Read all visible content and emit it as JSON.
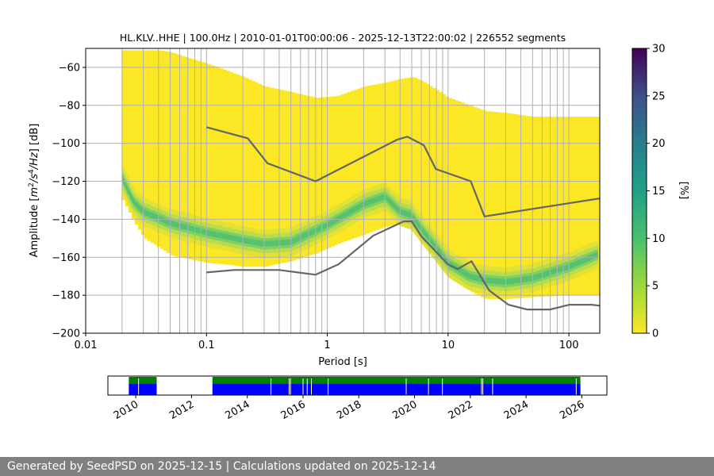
{
  "chart_data": [
    {
      "type": "heatmap",
      "title": "HL.KLV..HHE | 100.0Hz | 2010-01-01T00:00:06 - 2025-12-13T22:00:02 | 226552 segments",
      "xlabel": "Period [s]",
      "ylabel_parts": [
        "Amplitude [",
        "m",
        "2",
        "/",
        "s",
        "4",
        "/",
        "Hz",
        "] [dB]"
      ],
      "xscale": "log",
      "xlim": [
        0.01,
        180
      ],
      "ylim": [
        -200,
        -50
      ],
      "x_ticks": [
        0.01,
        0.1,
        1,
        10,
        100
      ],
      "x_tick_labels": [
        "0.01",
        "0.1",
        "1",
        "10",
        "100"
      ],
      "y_ticks": [
        -200,
        -180,
        -160,
        -140,
        -120,
        -100,
        -80,
        -60
      ],
      "y_tick_labels": [
        "−200",
        "−180",
        "−160",
        "−140",
        "−120",
        "−100",
        "−80",
        "−60"
      ],
      "grid": true,
      "colorbar": {
        "label": "[%]",
        "range": [
          0,
          30
        ],
        "ticks": [
          0,
          5,
          10,
          15,
          20,
          25,
          30
        ],
        "tick_labels": [
          "0",
          "5",
          "10",
          "15",
          "20",
          "25",
          "30"
        ],
        "colormap": "viridis_r"
      },
      "psd_envelope": {
        "period": [
          0.02,
          0.025,
          0.03,
          0.04,
          0.05,
          0.07,
          0.1,
          0.15,
          0.2,
          0.3,
          0.5,
          0.8,
          1.2,
          2,
          3,
          4,
          5,
          6,
          8,
          10,
          15,
          20,
          30,
          50,
          100,
          180
        ],
        "upper": [
          -51,
          -51,
          -51,
          -51,
          -52,
          -55,
          -58,
          -62,
          -65,
          -70,
          -73,
          -76,
          -75,
          -70,
          -68,
          -66,
          -65,
          -67,
          -72,
          -76,
          -80,
          -83,
          -84,
          -86,
          -86,
          -86
        ],
        "lower": [
          -130,
          -142,
          -150,
          -155,
          -159,
          -161,
          -163,
          -164,
          -165,
          -165,
          -162,
          -158,
          -153,
          -148,
          -144,
          -142,
          -142,
          -146,
          -156,
          -168,
          -178,
          -182,
          -182,
          -181,
          -180,
          -180
        ]
      },
      "mode": {
        "period": [
          0.02,
          0.025,
          0.03,
          0.05,
          0.1,
          0.2,
          0.3,
          0.5,
          1,
          2,
          3,
          4,
          5,
          6,
          8,
          10,
          15,
          20,
          30,
          50,
          100,
          180
        ],
        "values": [
          -118,
          -131,
          -136,
          -142,
          -147,
          -151,
          -153,
          -152,
          -143,
          -132,
          -128,
          -136,
          -138,
          -145,
          -155,
          -163,
          -170,
          -172,
          -173,
          -171,
          -165,
          -158
        ]
      },
      "nhnm": {
        "period": [
          0.1,
          0.22,
          0.32,
          0.8,
          3.8,
          4.6,
          6.3,
          7.9,
          15.4,
          20,
          180
        ],
        "values": [
          -91.5,
          -97.4,
          -110.5,
          -120,
          -98,
          -96.5,
          -101,
          -113.5,
          -120,
          -138.5,
          -129
        ]
      },
      "nlnm": {
        "period": [
          0.1,
          0.17,
          0.4,
          0.8,
          1.24,
          2.4,
          4.3,
          5,
          6,
          10,
          12,
          15.6,
          21.9,
          31.6,
          45,
          70,
          101,
          154,
          180
        ],
        "values": [
          -168,
          -166.7,
          -166.7,
          -169.2,
          -163.7,
          -148.6,
          -141.1,
          -141.1,
          -149,
          -163.8,
          -166.2,
          -162.1,
          -177.5,
          -185,
          -187.5,
          -187.5,
          -185,
          -185,
          -185.5
        ]
      },
      "vertical_gridlines_period": [
        0.02,
        0.03,
        0.04,
        0.05,
        0.06,
        0.07,
        0.08,
        0.09,
        0.2,
        0.3,
        0.4,
        0.5,
        0.6,
        0.7,
        0.8,
        0.9,
        2,
        3,
        4,
        5,
        6,
        7,
        8,
        9,
        20,
        30,
        40,
        50,
        60,
        70,
        80,
        90
      ]
    },
    {
      "type": "timeline",
      "x_tick_labels": [
        "2010",
        "2012",
        "2014",
        "2016",
        "2018",
        "2020",
        "2022",
        "2024",
        "2026"
      ],
      "x_ticks": [
        2010,
        2012,
        2014,
        2016,
        2018,
        2020,
        2022,
        2024,
        2026
      ],
      "xlim": [
        2009.0,
        2026.9
      ],
      "coverage_periods": [
        [
          2009.75,
          2010.75
        ],
        [
          2012.75,
          2025.95
        ]
      ],
      "gaps": [
        2010.1,
        2014.85,
        2015.5,
        2015.55,
        2016.0,
        2016.15,
        2016.3,
        2016.9,
        2019.7,
        2020.5,
        2021.0,
        2022.4,
        2022.45,
        2022.8,
        2025.8
      ],
      "colors": {
        "coverage_top": "#008000",
        "coverage_bottom": "#0000ff"
      }
    }
  ],
  "footer": {
    "text": "Generated by SeedPSD on 2025-12-15 | Calculations updated on 2025-12-14"
  }
}
